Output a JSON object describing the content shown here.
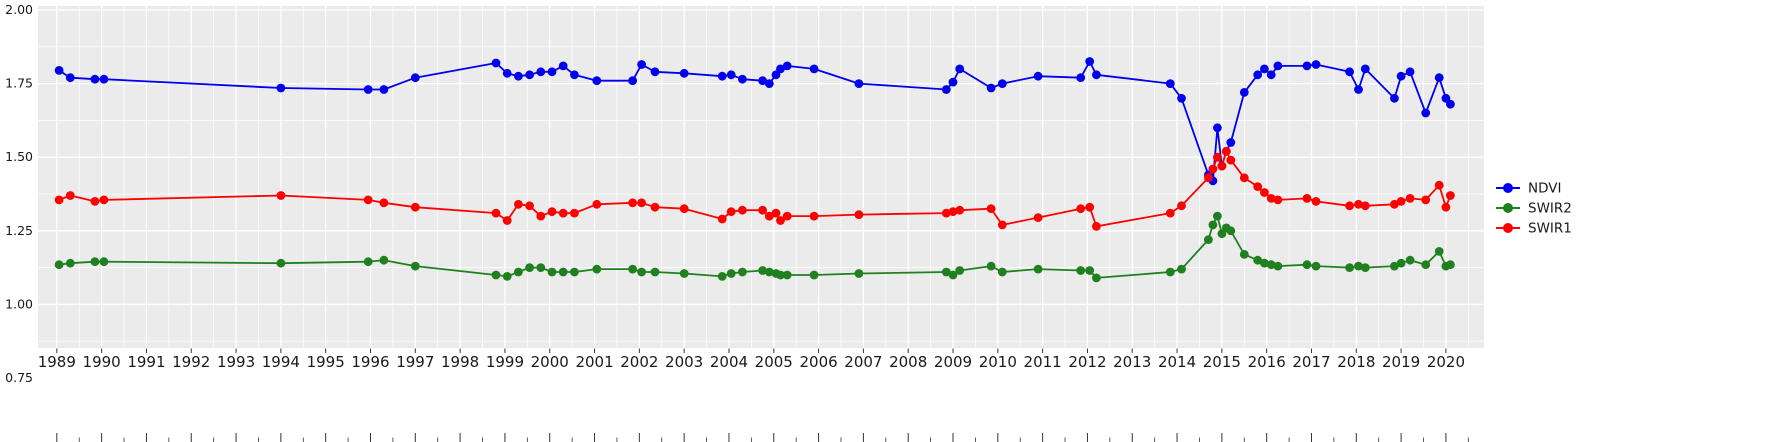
{
  "chart": {
    "background": "#FFFFFF",
    "panel_color": "#EBEBEB",
    "grid_major_color": "#FFFFFF",
    "grid_minor_color": "#FFFFFF",
    "axis_tick_color": "#333333",
    "axis_text_color": "#1a1a1a"
  },
  "chart_data": {
    "type": "line",
    "title": "",
    "xlabel": "",
    "ylabel": "",
    "grid": true,
    "legend_position": "right",
    "xlim": [
      1988.58,
      2020.85
    ],
    "ylim": [
      0.75,
      2.0
    ],
    "x_ticks": [
      1989,
      1990,
      1991,
      1992,
      1993,
      1994,
      1995,
      1996,
      1997,
      1998,
      1999,
      2000,
      2001,
      2002,
      2003,
      2004,
      2005,
      2006,
      2007,
      2008,
      2009,
      2010,
      2011,
      2012,
      2013,
      2014,
      2015,
      2016,
      2017,
      2018,
      2019,
      2020
    ],
    "y_ticks": [
      2.0,
      1.75,
      1.5,
      1.25,
      1.0,
      0.75
    ],
    "y_tick_labels": [
      "2.00",
      "1.75",
      "1.50",
      "1.25",
      "1.00",
      "0.75"
    ],
    "y_minor_ticks": [
      1.875,
      1.625,
      1.375,
      1.125,
      0.875
    ],
    "x": [
      1989.05,
      1989.3,
      1989.85,
      1990.05,
      1994.0,
      1995.95,
      1996.3,
      1997.0,
      1998.8,
      1999.05,
      1999.3,
      1999.55,
      1999.8,
      2000.05,
      2000.3,
      2000.55,
      2001.05,
      2001.85,
      2002.05,
      2002.35,
      2003.0,
      2003.85,
      2004.05,
      2004.3,
      2004.75,
      2004.9,
      2005.05,
      2005.15,
      2005.3,
      2005.9,
      2006.9,
      2008.85,
      2009.0,
      2009.15,
      2009.85,
      2010.1,
      2010.9,
      2011.85,
      2012.05,
      2012.2,
      2013.85,
      2014.1,
      2014.7,
      2014.8,
      2014.9,
      2015.0,
      2015.1,
      2015.2,
      2015.5,
      2015.8,
      2015.95,
      2016.1,
      2016.25,
      2016.9,
      2017.1,
      2017.85,
      2018.05,
      2018.2,
      2018.85,
      2019.0,
      2019.2,
      2019.55,
      2019.85,
      2020.0,
      2020.1
    ],
    "series": [
      {
        "name": "NDVI",
        "color": "#0000EE",
        "values": [
          1.795,
          1.77,
          1.765,
          1.765,
          1.735,
          1.73,
          1.73,
          1.77,
          1.82,
          1.785,
          1.775,
          1.78,
          1.79,
          1.79,
          1.81,
          1.78,
          1.76,
          1.76,
          1.815,
          1.79,
          1.785,
          1.775,
          1.78,
          1.765,
          1.76,
          1.75,
          1.78,
          1.8,
          1.81,
          1.8,
          1.75,
          1.73,
          1.755,
          1.8,
          1.735,
          1.75,
          1.775,
          1.77,
          1.825,
          1.78,
          1.75,
          1.7,
          1.44,
          1.42,
          1.6,
          1.47,
          1.52,
          1.55,
          1.72,
          1.78,
          1.8,
          1.78,
          1.81,
          1.81,
          1.815,
          1.79,
          1.73,
          1.8,
          1.7,
          1.775,
          1.79,
          1.65,
          1.77,
          1.7,
          1.68
        ]
      },
      {
        "name": "SWIR2",
        "color": "#208020",
        "values": [
          1.135,
          1.14,
          1.145,
          1.145,
          1.14,
          1.145,
          1.15,
          1.13,
          1.1,
          1.095,
          1.11,
          1.125,
          1.125,
          1.11,
          1.11,
          1.11,
          1.12,
          1.12,
          1.11,
          1.11,
          1.105,
          1.095,
          1.105,
          1.11,
          1.115,
          1.11,
          1.105,
          1.1,
          1.1,
          1.1,
          1.105,
          1.11,
          1.1,
          1.115,
          1.13,
          1.11,
          1.12,
          1.115,
          1.115,
          1.09,
          1.11,
          1.12,
          1.22,
          1.27,
          1.3,
          1.24,
          1.26,
          1.25,
          1.17,
          1.15,
          1.14,
          1.135,
          1.13,
          1.135,
          1.13,
          1.125,
          1.13,
          1.125,
          1.13,
          1.14,
          1.15,
          1.135,
          1.18,
          1.13,
          1.135
        ]
      },
      {
        "name": "SWIR1",
        "color": "#FF0000",
        "values": [
          1.355,
          1.37,
          1.35,
          1.355,
          1.37,
          1.355,
          1.345,
          1.33,
          1.31,
          1.285,
          1.34,
          1.335,
          1.3,
          1.315,
          1.31,
          1.31,
          1.34,
          1.345,
          1.345,
          1.33,
          1.325,
          1.29,
          1.315,
          1.32,
          1.32,
          1.3,
          1.31,
          1.285,
          1.3,
          1.3,
          1.305,
          1.31,
          1.315,
          1.32,
          1.325,
          1.27,
          1.295,
          1.325,
          1.33,
          1.265,
          1.31,
          1.335,
          1.43,
          1.46,
          1.5,
          1.47,
          1.52,
          1.49,
          1.43,
          1.4,
          1.38,
          1.36,
          1.355,
          1.36,
          1.35,
          1.335,
          1.34,
          1.335,
          1.34,
          1.35,
          1.36,
          1.355,
          1.405,
          1.33,
          1.37
        ]
      }
    ],
    "legend_items": [
      "NDVI",
      "SWIR2",
      "SWIR1"
    ]
  }
}
